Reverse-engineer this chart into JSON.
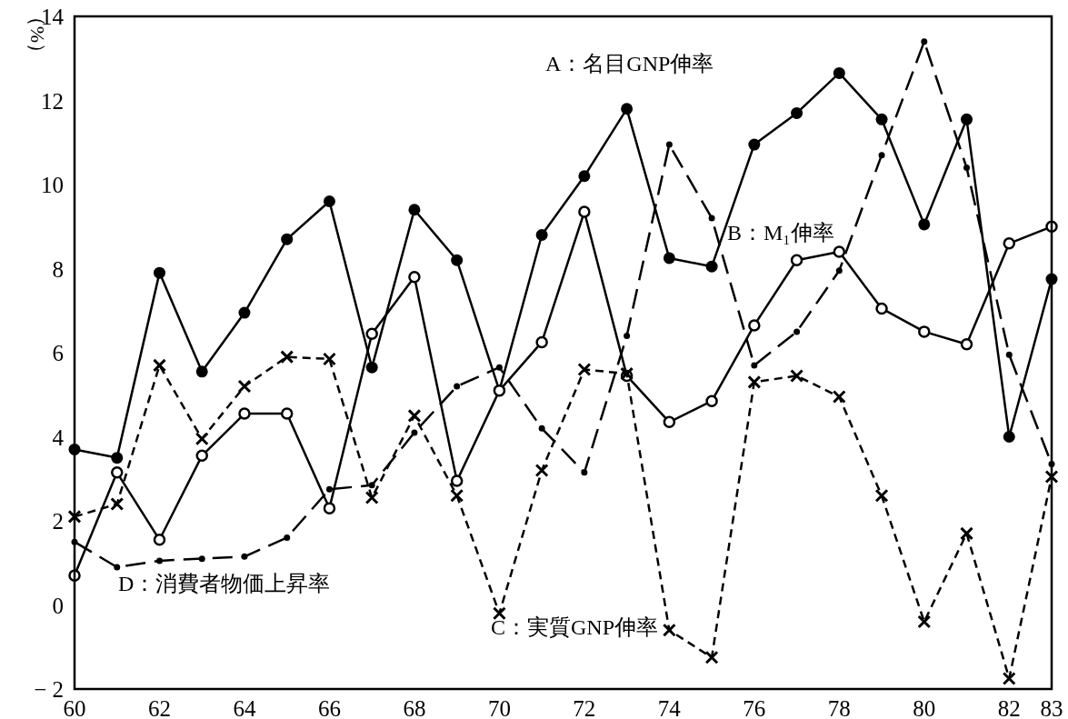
{
  "chart_data": {
    "type": "line",
    "ylabel": "（%）",
    "x": [
      60,
      61,
      62,
      63,
      64,
      65,
      66,
      67,
      68,
      69,
      70,
      71,
      72,
      73,
      74,
      75,
      76,
      77,
      78,
      79,
      80,
      81,
      82,
      83
    ],
    "xlim": [
      60,
      83
    ],
    "xticks": [
      60,
      62,
      64,
      66,
      68,
      70,
      72,
      74,
      76,
      78,
      80,
      82,
      83
    ],
    "ylim": [
      -2,
      14
    ],
    "yticks": [
      {
        "value": -2,
        "label": "− 2"
      },
      0,
      2,
      4,
      6,
      8,
      10,
      12,
      14
    ],
    "grid": false,
    "series": [
      {
        "name": "A：名目GNP伸率",
        "color": "#000000",
        "marker": "circle",
        "line_style": "solid",
        "values": [
          3.7,
          3.5,
          7.9,
          5.55,
          6.95,
          8.7,
          9.6,
          5.65,
          9.4,
          8.2,
          5.1,
          8.8,
          10.2,
          11.8,
          8.25,
          8.05,
          10.95,
          11.7,
          12.65,
          11.55,
          9.05,
          11.55,
          4.0,
          7.75
        ]
      },
      {
        "name": "B：M₁伸率",
        "color": "#000000",
        "marker": "open_circle",
        "line_style": "solid",
        "values": [
          0.7,
          3.15,
          1.55,
          3.55,
          4.55,
          4.55,
          2.3,
          6.45,
          7.8,
          2.95,
          5.1,
          6.25,
          9.35,
          5.45,
          4.35,
          4.85,
          6.65,
          8.2,
          8.4,
          7.05,
          6.5,
          6.2,
          8.6,
          9.0
        ]
      },
      {
        "name": "C：実質GNP伸率",
        "color": "#000000",
        "marker": "cross",
        "line_style": "dotted",
        "values": [
          2.1,
          2.4,
          5.7,
          3.95,
          5.2,
          5.9,
          5.85,
          2.55,
          4.5,
          2.6,
          -0.2,
          3.2,
          5.6,
          5.5,
          -0.6,
          -1.25,
          5.3,
          5.45,
          4.95,
          2.6,
          -0.4,
          1.7,
          -1.75,
          3.05
        ]
      },
      {
        "name": "D：消費者物価上昇率",
        "color": "#000000",
        "marker": "point",
        "line_style": "dashed",
        "values": [
          1.5,
          0.9,
          1.05,
          1.1,
          1.15,
          1.6,
          2.75,
          2.85,
          4.1,
          5.2,
          5.65,
          4.2,
          3.15,
          6.4,
          10.95,
          9.2,
          5.7,
          6.5,
          7.95,
          10.7,
          13.4,
          10.4,
          5.95,
          3.35
        ]
      }
    ]
  }
}
